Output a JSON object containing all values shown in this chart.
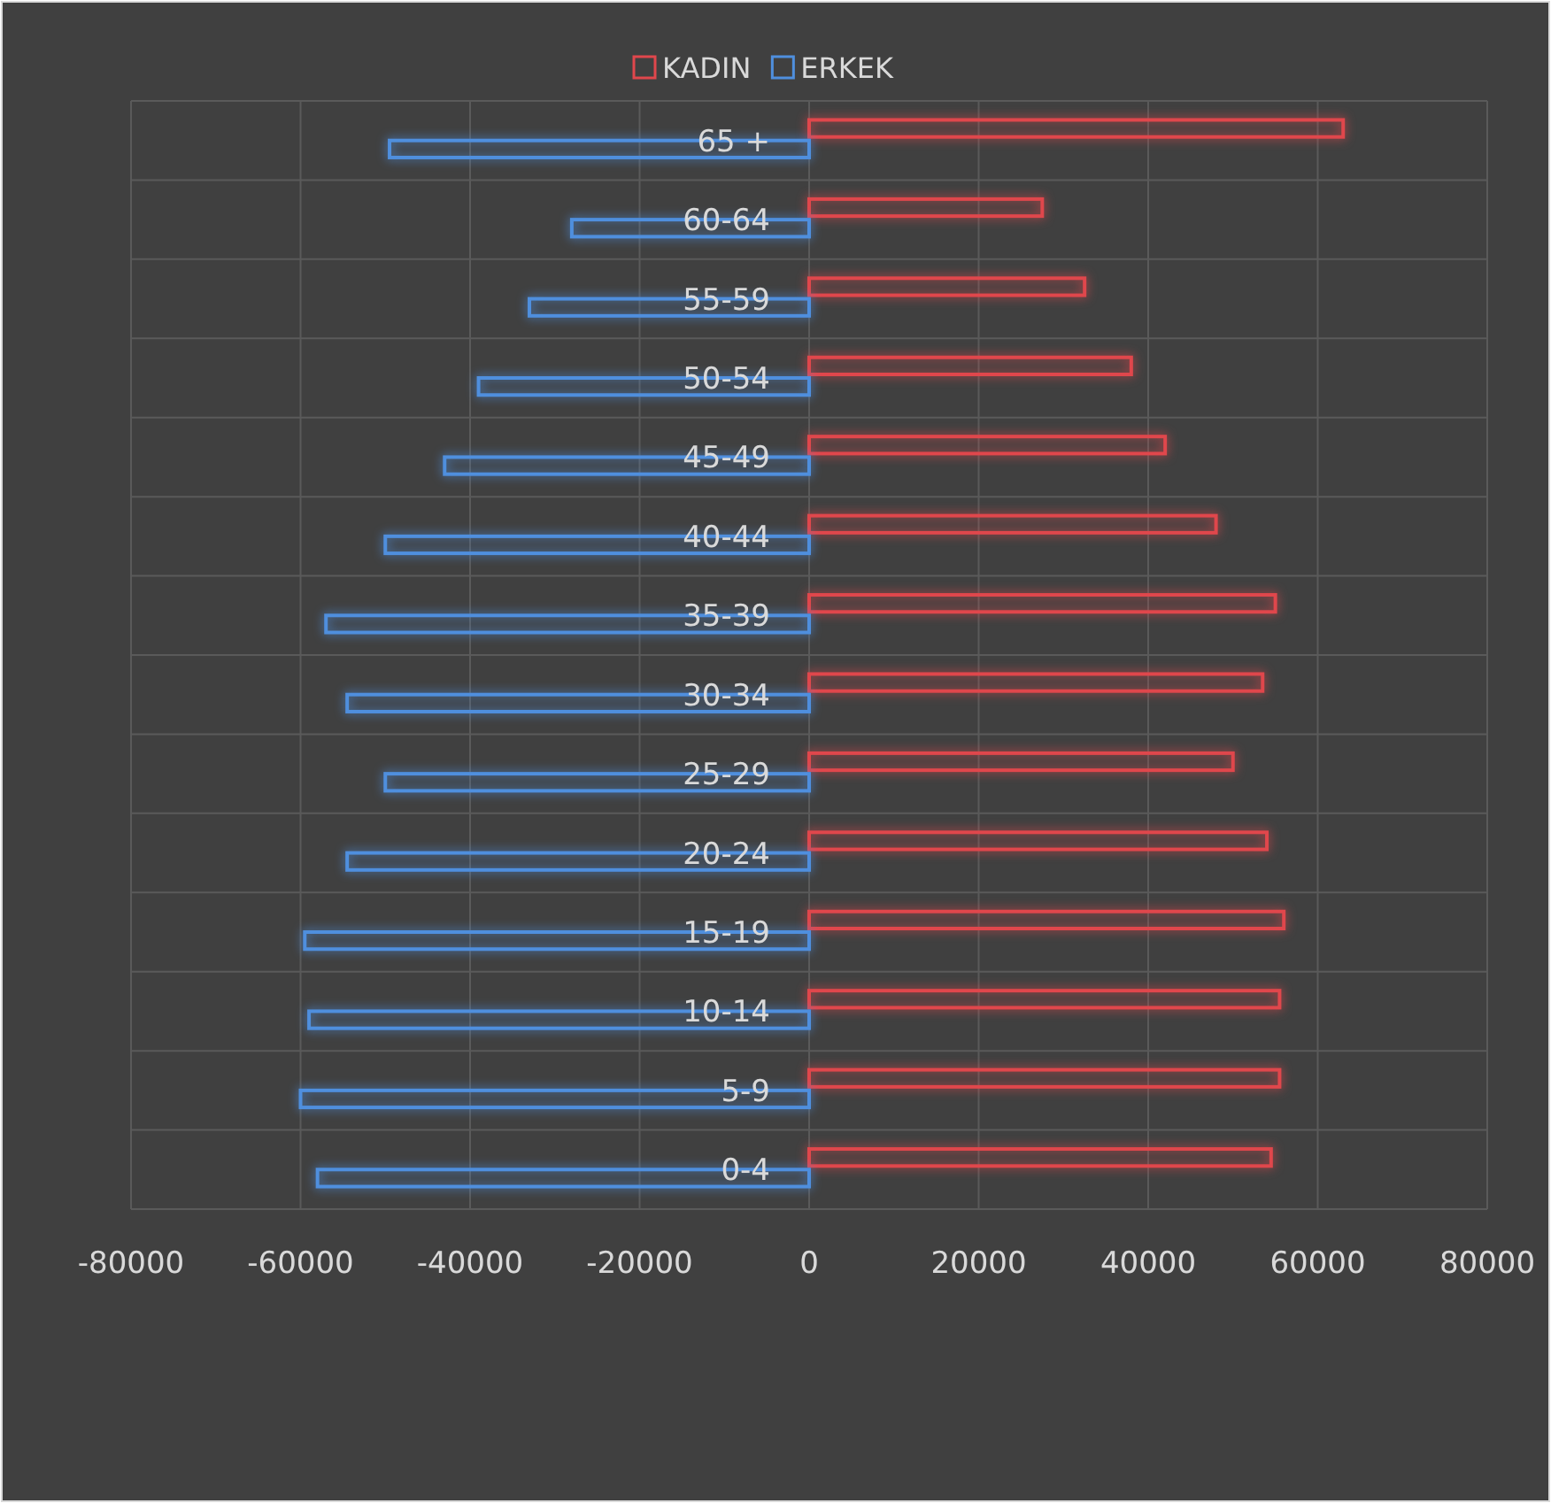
{
  "chart_data": {
    "type": "bar",
    "orientation": "horizontal",
    "categories": [
      "65 +",
      "60-64",
      "55-59",
      "50-54",
      "45-49",
      "40-44",
      "35-39",
      "30-34",
      "25-29",
      "20-24",
      "15-19",
      "10-14",
      "5-9",
      "0-4"
    ],
    "series": [
      {
        "name": "KADIN",
        "color": "#e0474c",
        "values": [
          63000,
          27500,
          32500,
          38000,
          42000,
          48000,
          55000,
          53500,
          50000,
          54000,
          56000,
          55500,
          55500,
          54500
        ]
      },
      {
        "name": "ERKEK",
        "color": "#4f8fde",
        "values": [
          -49500,
          -28000,
          -33000,
          -39000,
          -43000,
          -50000,
          -57000,
          -54500,
          -50000,
          -54500,
          -59500,
          -59000,
          -60000,
          -58000
        ]
      }
    ],
    "xlim": [
      -80000,
      80000
    ],
    "xticks": [
      -80000,
      -60000,
      -40000,
      -20000,
      0,
      20000,
      40000,
      60000,
      80000
    ],
    "grid": true,
    "legend": "top"
  }
}
